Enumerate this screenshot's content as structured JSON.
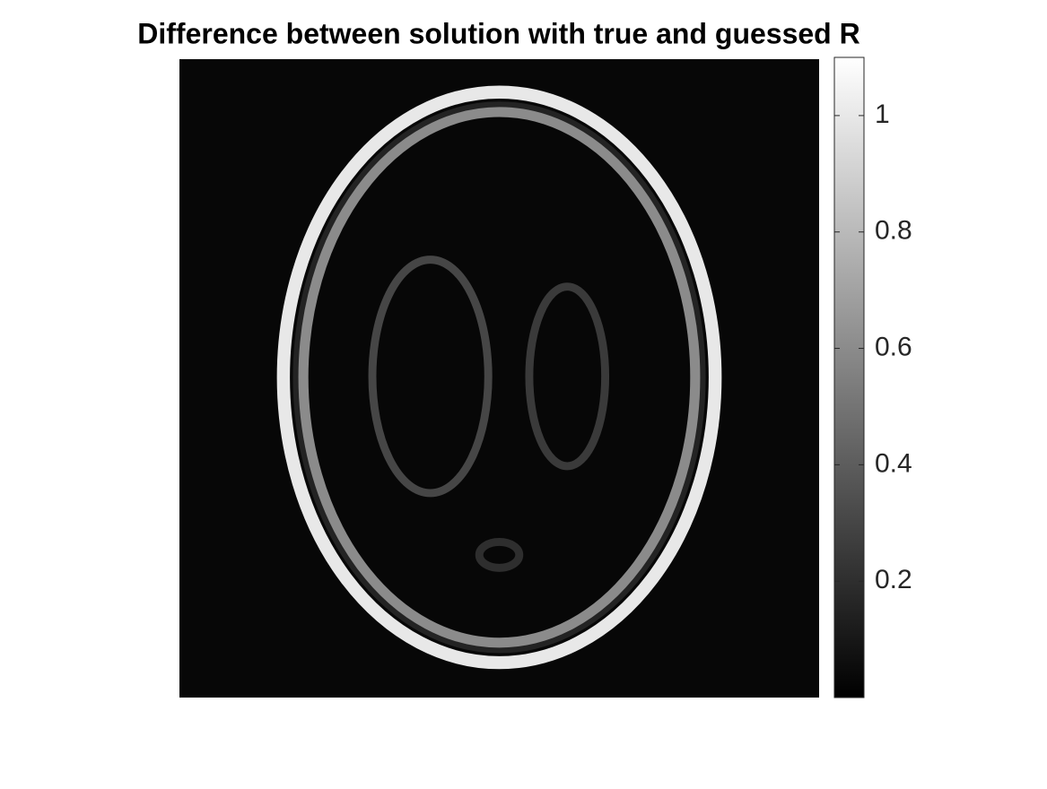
{
  "chart_data": {
    "type": "image",
    "title": "Difference between solution with true and guessed R",
    "xlim": [
      0.5,
      64.5
    ],
    "ylim": [
      0.5,
      64.5
    ],
    "colormap": "gray",
    "clim": [
      0,
      1.1
    ],
    "cticks": [
      0.2,
      0.4,
      0.6,
      0.8,
      1
    ],
    "background": 0.03,
    "rings": [
      {
        "cx": 32.5,
        "cy": 32.4,
        "rx": 21.6,
        "ry": 28.6,
        "width": 1.3,
        "value": 1.0
      },
      {
        "cx": 32.5,
        "cy": 32.4,
        "rx": 20.2,
        "ry": 27.2,
        "width": 0.9,
        "value": 0.15
      },
      {
        "cx": 32.5,
        "cy": 32.4,
        "rx": 19.6,
        "ry": 26.6,
        "width": 1.0,
        "value": 0.6
      },
      {
        "cx": 25.6,
        "cy": 32.3,
        "rx": 5.8,
        "ry": 11.7,
        "width": 0.8,
        "value": 0.3
      },
      {
        "cx": 39.3,
        "cy": 32.3,
        "rx": 3.8,
        "ry": 9,
        "width": 0.8,
        "value": 0.25
      },
      {
        "cx": 32.5,
        "cy": 50.2,
        "rx": 2,
        "ry": 1.3,
        "width": 0.8,
        "value": 0.2
      }
    ]
  }
}
